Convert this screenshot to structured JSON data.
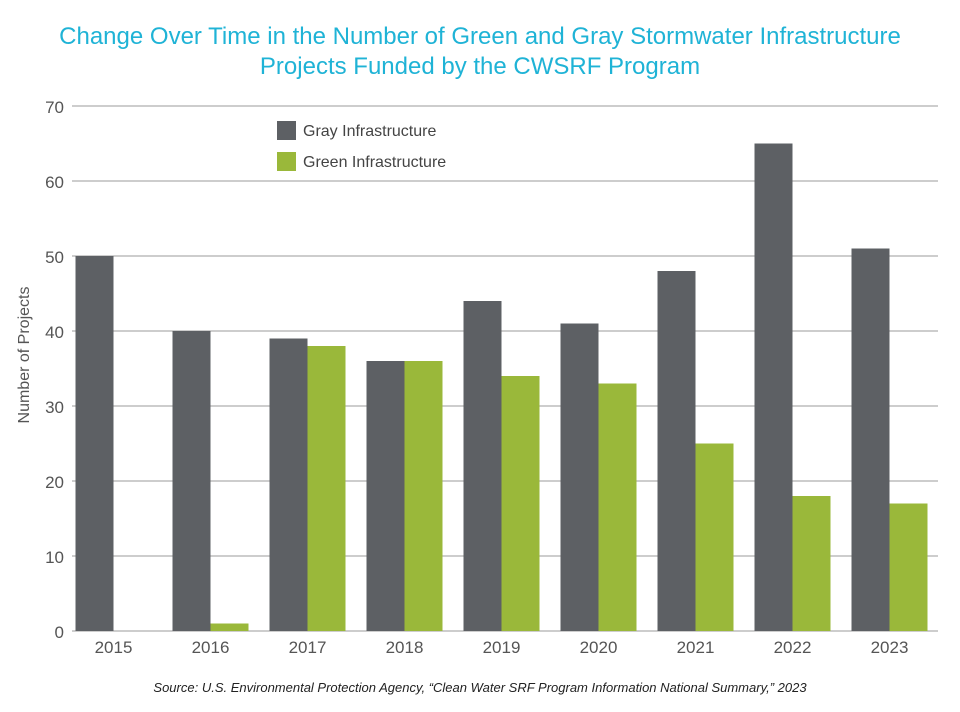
{
  "title_lines": [
    "Change Over Time in the Number of Green and Gray Stormwater Infrastructure",
    "Projects Funded by the CWSRF Program"
  ],
  "source": "Source: U.S. Environmental Protection Agency, “Clean Water SRF Program Information National Summary,” 2023",
  "colors": {
    "title": "#1fb3d6",
    "gray": "#5d6064",
    "green": "#9ab83a",
    "grid": "#9b9b9b",
    "axis_text": "#555555"
  },
  "chart_data": {
    "type": "bar",
    "title": "Change Over Time in the Number of Green and Gray Stormwater Infrastructure Projects Funded by the CWSRF Program",
    "xlabel": "",
    "ylabel": "Number of Projects",
    "categories": [
      "2015",
      "2016",
      "2017",
      "2018",
      "2019",
      "2020",
      "2021",
      "2022",
      "2023"
    ],
    "series": [
      {
        "name": "Gray Infrastructure",
        "values": [
          50,
          40,
          39,
          36,
          44,
          41,
          48,
          65,
          51
        ],
        "color": "#5d6064"
      },
      {
        "name": "Green Infrastructure",
        "values": [
          0,
          1,
          38,
          36,
          34,
          33,
          25,
          18,
          17
        ],
        "color": "#9ab83a"
      }
    ],
    "ylim": [
      0,
      70
    ],
    "yticks": [
      0,
      10,
      20,
      30,
      40,
      50,
      60,
      70
    ],
    "grid": true,
    "legend": "top-left"
  }
}
